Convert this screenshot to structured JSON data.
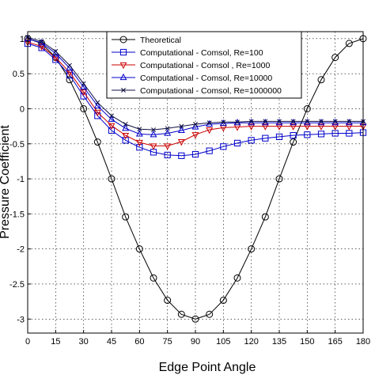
{
  "chart_data": {
    "type": "line",
    "xlabel": "Edge Point Angle",
    "ylabel": "Pressure Coefficient",
    "xlim": [
      0,
      180
    ],
    "ylim": [
      -3.2,
      1.1
    ],
    "xticks": [
      0,
      15,
      30,
      45,
      60,
      75,
      90,
      105,
      120,
      135,
      150,
      165,
      180
    ],
    "yticks": [
      1,
      0.5,
      0,
      -0.5,
      -1,
      -1.5,
      -2,
      -2.5,
      -3
    ],
    "ytick_labels": [
      "1",
      "0.5",
      "0",
      "-0.5",
      "-1",
      "-1.5",
      "-2",
      "-2.5",
      "-3"
    ],
    "grid": true,
    "legend_position": "top-right",
    "series": [
      {
        "name": "Theoretical",
        "color": "#000000",
        "marker": "circle",
        "x": [
          0,
          7.5,
          15,
          22.5,
          30,
          37.5,
          45,
          52.5,
          60,
          67.5,
          75,
          82.5,
          90,
          97.5,
          105,
          112.5,
          120,
          127.5,
          135,
          142.5,
          150,
          157.5,
          165,
          172.5,
          180
        ],
        "y": [
          1.0,
          0.932,
          0.732,
          0.414,
          0.0,
          -0.475,
          -1.0,
          -1.543,
          -2.0,
          -2.414,
          -2.732,
          -2.932,
          -3.0,
          -2.932,
          -2.732,
          -2.414,
          -2.0,
          -1.543,
          -1.0,
          -0.475,
          0.0,
          0.414,
          0.732,
          0.932,
          1.0
        ]
      },
      {
        "name": "Computational - Comsol, Re=100",
        "color": "#0000cc",
        "marker": "square",
        "x": [
          0,
          7.5,
          15,
          22.5,
          30,
          37.5,
          45,
          52.5,
          60,
          67.5,
          75,
          82.5,
          90,
          97.5,
          105,
          112.5,
          120,
          127.5,
          135,
          142.5,
          150,
          157.5,
          165,
          172.5,
          180
        ],
        "y": [
          0.93,
          0.87,
          0.7,
          0.48,
          0.18,
          -0.1,
          -0.31,
          -0.45,
          -0.55,
          -0.62,
          -0.66,
          -0.67,
          -0.65,
          -0.6,
          -0.54,
          -0.49,
          -0.45,
          -0.42,
          -0.4,
          -0.38,
          -0.37,
          -0.36,
          -0.35,
          -0.35,
          -0.34
        ]
      },
      {
        "name": "Computational - Comsol , Re=1000",
        "color": "#cc0000",
        "marker": "triangle-down",
        "x": [
          0,
          7.5,
          15,
          22.5,
          30,
          37.5,
          45,
          52.5,
          60,
          67.5,
          75,
          82.5,
          90,
          97.5,
          105,
          112.5,
          120,
          127.5,
          135,
          142.5,
          150,
          157.5,
          165,
          172.5,
          180
        ],
        "y": [
          0.95,
          0.89,
          0.73,
          0.52,
          0.24,
          -0.05,
          -0.24,
          -0.38,
          -0.48,
          -0.53,
          -0.53,
          -0.47,
          -0.37,
          -0.3,
          -0.27,
          -0.26,
          -0.25,
          -0.25,
          -0.25,
          -0.25,
          -0.25,
          -0.25,
          -0.25,
          -0.25,
          -0.25
        ]
      },
      {
        "name": "Computational - Comsol, Re=10000",
        "color": "#0000cc",
        "marker": "triangle-up",
        "x": [
          0,
          7.5,
          15,
          22.5,
          30,
          37.5,
          45,
          52.5,
          60,
          67.5,
          75,
          82.5,
          90,
          97.5,
          105,
          112.5,
          120,
          127.5,
          135,
          142.5,
          150,
          157.5,
          165,
          172.5,
          180
        ],
        "y": [
          1.0,
          0.94,
          0.79,
          0.58,
          0.31,
          0.04,
          -0.15,
          -0.28,
          -0.36,
          -0.37,
          -0.35,
          -0.31,
          -0.26,
          -0.22,
          -0.21,
          -0.2,
          -0.2,
          -0.2,
          -0.2,
          -0.2,
          -0.2,
          -0.2,
          -0.2,
          -0.2,
          -0.2
        ]
      },
      {
        "name": "Computational - Comsol, Re=1000000",
        "color": "#111144",
        "marker": "x",
        "x": [
          0,
          7.5,
          15,
          22.5,
          30,
          37.5,
          45,
          52.5,
          60,
          67.5,
          75,
          82.5,
          90,
          97.5,
          105,
          112.5,
          120,
          127.5,
          135,
          142.5,
          150,
          157.5,
          165,
          172.5,
          180
        ],
        "y": [
          1.02,
          0.96,
          0.82,
          0.62,
          0.36,
          0.09,
          -0.1,
          -0.22,
          -0.29,
          -0.3,
          -0.28,
          -0.25,
          -0.22,
          -0.2,
          -0.19,
          -0.19,
          -0.18,
          -0.18,
          -0.18,
          -0.18,
          -0.18,
          -0.18,
          -0.18,
          -0.18,
          -0.18
        ]
      }
    ]
  }
}
